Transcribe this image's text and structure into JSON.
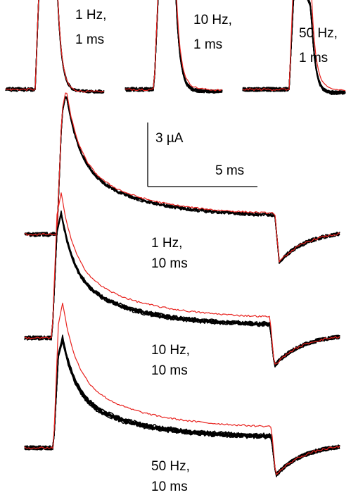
{
  "chart_data": {
    "type": "line",
    "description_units": {
      "time": "ms",
      "current": "µA"
    },
    "scale_bar": {
      "current_label": "3 µA",
      "current_value": 3,
      "time_label": "5 ms",
      "time_value": 5
    },
    "colors": {
      "first_trace": "#e8231f",
      "subsequent_traces": "#000000"
    },
    "panels": [
      {
        "id": "1hz-1ms",
        "label_line1": "1 Hz,",
        "label_line2": "1 ms",
        "freq_hz": 1,
        "pulse_ms": 1,
        "first_peak_uA": 7.3,
        "steady_peak_uA": 7.0,
        "first_end_uA": 0.0,
        "steady_end_uA": 0.0,
        "n_traces": 5
      },
      {
        "id": "10hz-1ms",
        "label_line1": "10 Hz,",
        "label_line2": "1 ms",
        "freq_hz": 10,
        "pulse_ms": 1,
        "first_peak_uA": 6.6,
        "steady_peak_uA": 6.1,
        "first_end_uA": 0.3,
        "steady_end_uA": 0.0,
        "n_traces": 8
      },
      {
        "id": "50hz-1ms",
        "label_line1": "50 Hz,",
        "label_line2": "1 ms",
        "freq_hz": 50,
        "pulse_ms": 1,
        "first_peak_uA": 6.8,
        "steady_peak_uA": 5.5,
        "first_end_uA": 0.2,
        "steady_end_uA": -0.2,
        "n_traces": 10
      },
      {
        "id": "1hz-10ms",
        "label_line1": "1 Hz,",
        "label_line2": "10 ms",
        "freq_hz": 1,
        "pulse_ms": 10,
        "first_peak_uA": 6.8,
        "steady_peak_uA": 6.6,
        "first_end_uA": 0.9,
        "steady_end_uA": 0.8,
        "n_traces": 5
      },
      {
        "id": "10hz-10ms",
        "label_line1": "10 Hz,",
        "label_line2": "10 ms",
        "freq_hz": 10,
        "pulse_ms": 10,
        "first_peak_uA": 6.8,
        "steady_peak_uA": 5.8,
        "first_end_uA": 0.9,
        "steady_end_uA": 0.5,
        "n_traces": 8
      },
      {
        "id": "50hz-10ms",
        "label_line1": "50 Hz,",
        "label_line2": "10 ms",
        "freq_hz": 50,
        "pulse_ms": 10,
        "first_peak_uA": 6.8,
        "steady_peak_uA": 5.0,
        "first_end_uA": 0.9,
        "steady_end_uA": 0.4,
        "n_traces": 10
      }
    ]
  }
}
